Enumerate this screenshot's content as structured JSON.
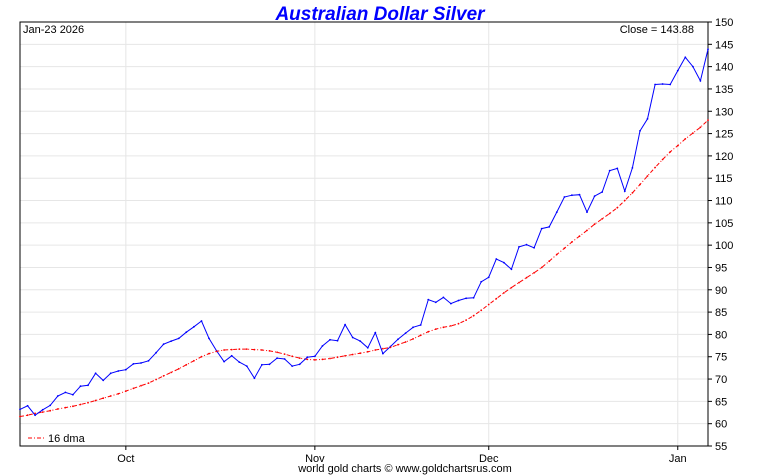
{
  "chart_data": {
    "type": "line",
    "title": "Australian Dollar Silver",
    "date_label": "Jan-23  2026",
    "close_label": "Close = 143.88",
    "footer": "world gold charts © www.goldchartsrus.com",
    "ylim": [
      55,
      150
    ],
    "y_ticks": [
      55,
      60,
      65,
      70,
      75,
      80,
      85,
      90,
      95,
      100,
      105,
      110,
      115,
      120,
      125,
      130,
      135,
      140,
      145,
      150
    ],
    "x_ticks": [
      "Oct",
      "Nov",
      "Dec",
      "Jan"
    ],
    "grid": true,
    "legend_position": "bottom-left",
    "colors": {
      "price": "#0000ff",
      "dma": "#ff0000",
      "title": "#0000ff"
    },
    "series": [
      {
        "key": "price",
        "values": [
          63.2,
          64.0,
          61.9,
          63.1,
          64.1,
          66.2,
          67.0,
          66.5,
          68.4,
          68.6,
          71.3,
          69.7,
          71.3,
          71.8,
          72.1,
          73.4,
          73.6,
          74.1,
          75.9,
          77.8,
          78.5,
          79.1,
          80.5,
          81.7,
          83.0,
          79.1,
          76.3,
          73.9,
          75.2,
          73.8,
          72.9,
          70.2,
          73.2,
          73.3,
          74.7,
          74.5,
          72.9,
          73.3,
          74.9,
          75.1,
          77.4,
          78.8,
          78.6,
          82.2,
          79.3,
          78.5,
          77.0,
          80.4,
          75.7,
          77.3,
          78.9,
          80.3,
          81.6,
          82.1,
          87.8,
          87.2,
          88.3,
          86.9,
          87.6,
          88.1,
          88.2,
          91.8,
          92.8,
          96.9,
          96.1,
          94.6,
          99.6,
          100.1,
          99.4,
          103.7,
          104.1,
          107.4,
          110.8,
          111.2,
          111.3,
          107.4,
          111.0,
          111.9,
          116.7,
          117.2,
          112.1,
          117.3,
          125.6,
          128.3,
          136.0,
          136.1,
          136.0,
          139.1,
          142.1,
          140.0,
          136.8,
          143.88
        ]
      },
      {
        "key": "dma",
        "name": "16 dma",
        "values": [
          61.6,
          61.9,
          62.3,
          62.6,
          62.9,
          63.3,
          63.6,
          63.9,
          64.3,
          64.7,
          65.2,
          65.7,
          66.2,
          66.7,
          67.3,
          67.9,
          68.5,
          69.1,
          69.9,
          70.7,
          71.5,
          72.3,
          73.2,
          74.1,
          75.0,
          75.7,
          76.2,
          76.5,
          76.6,
          76.7,
          76.7,
          76.6,
          76.5,
          76.3,
          76.0,
          75.6,
          75.1,
          74.7,
          74.4,
          74.3,
          74.4,
          74.6,
          74.9,
          75.2,
          75.5,
          75.8,
          76.1,
          76.5,
          76.8,
          77.1,
          77.7,
          78.3,
          79.0,
          79.8,
          80.6,
          81.2,
          81.6,
          81.9,
          82.4,
          83.2,
          84.2,
          85.4,
          86.7,
          88.0,
          89.3,
          90.5,
          91.6,
          92.7,
          93.8,
          95.0,
          96.4,
          97.9,
          99.3,
          100.7,
          102.0,
          103.3,
          104.7,
          105.9,
          107.1,
          108.4,
          110.0,
          111.7,
          113.6,
          115.5,
          117.4,
          119.2,
          120.9,
          122.3,
          123.8,
          125.1,
          126.4,
          128.0
        ]
      }
    ]
  }
}
